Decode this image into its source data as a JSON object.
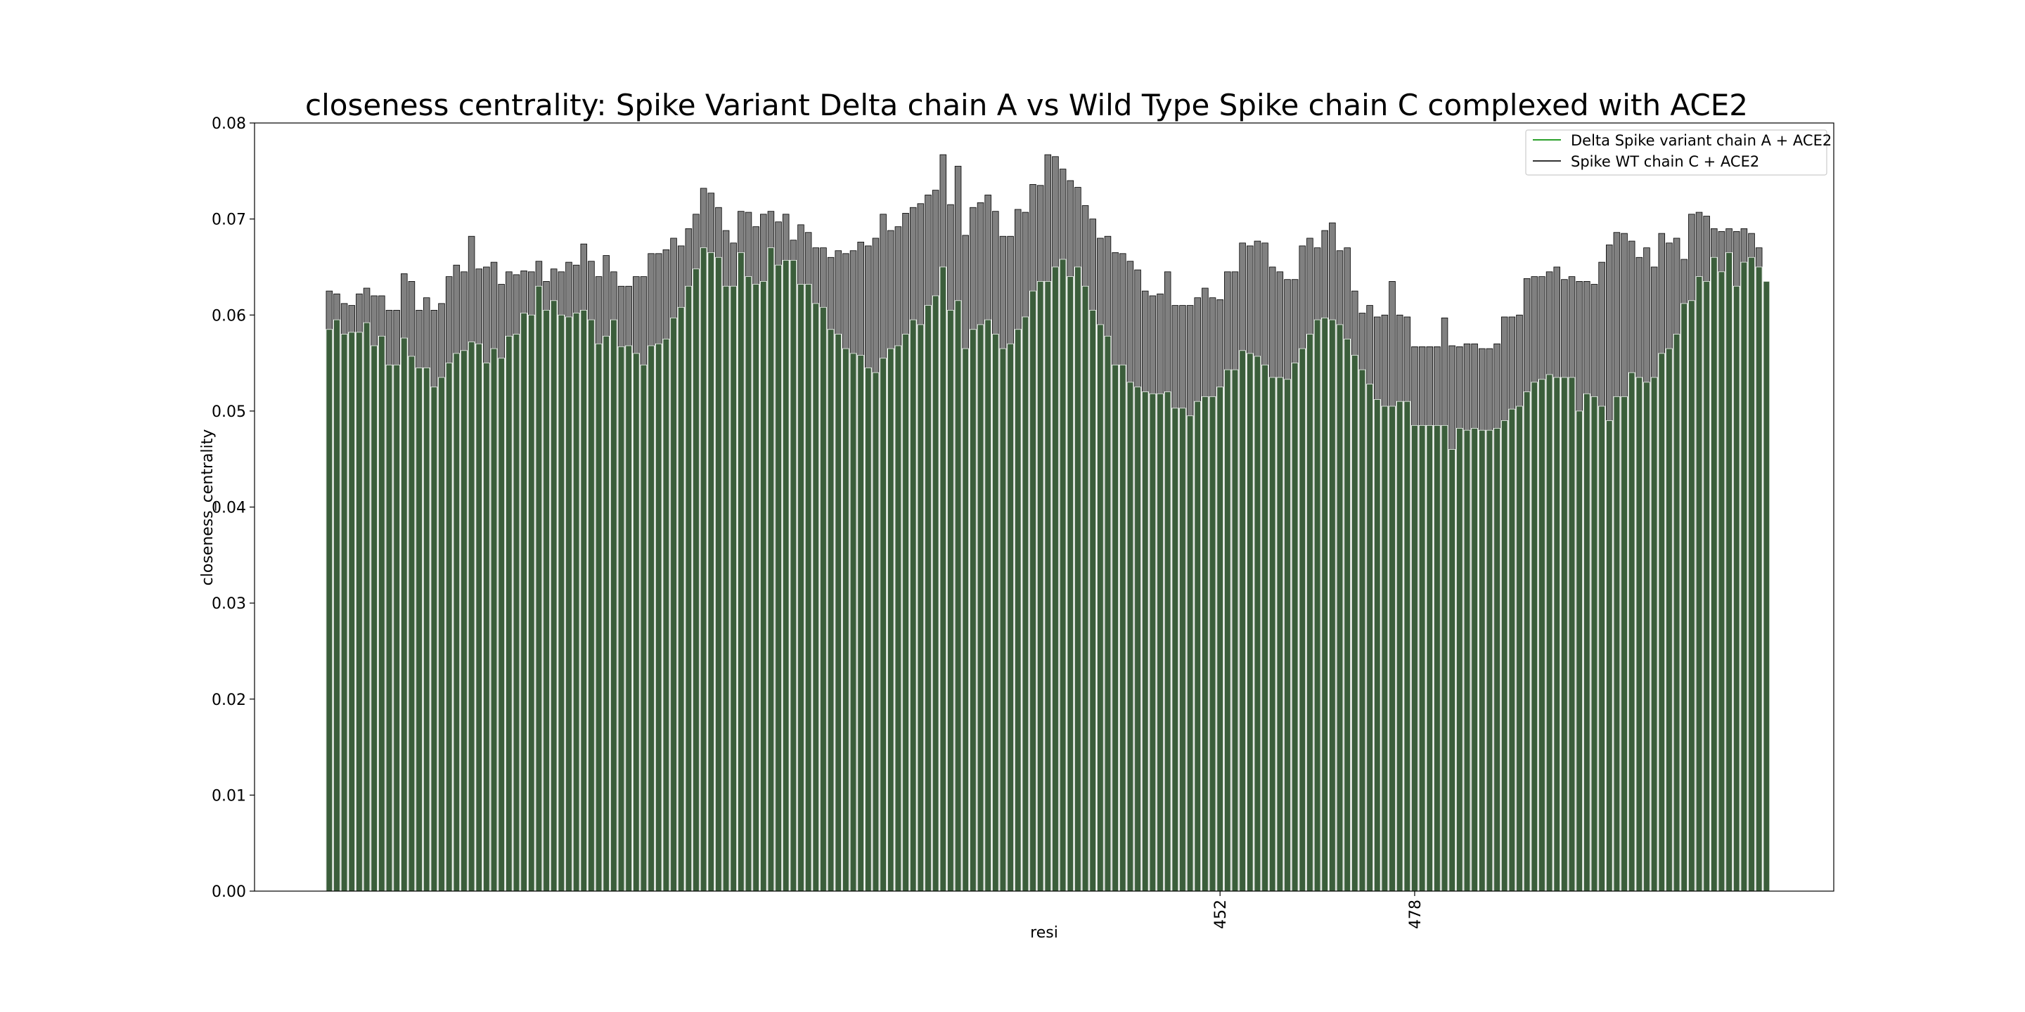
{
  "chart_data": {
    "type": "bar",
    "title": "closeness centrality: Spike Variant Delta chain A vs Wild Type Spike chain C complexed with ACE2",
    "xlabel": "resi",
    "ylabel": "closeness_centrality",
    "ylim": [
      0,
      0.08
    ],
    "yticks": [
      "0.00",
      "0.01",
      "0.02",
      "0.03",
      "0.04",
      "0.05",
      "0.06",
      "0.07",
      "0.08"
    ],
    "x_tick_labels": [
      {
        "index": 119,
        "label": "452"
      },
      {
        "index": 145,
        "label": "478"
      }
    ],
    "grid": false,
    "legend_position": "top-right",
    "series": [
      {
        "name": "Spike WT chain C + ACE2",
        "color": "#808080",
        "values": [
          0.0625,
          0.0622,
          0.0612,
          0.061,
          0.0622,
          0.0628,
          0.062,
          0.062,
          0.0605,
          0.0605,
          0.0643,
          0.0635,
          0.0605,
          0.0618,
          0.0605,
          0.0612,
          0.064,
          0.0652,
          0.0645,
          0.0682,
          0.0648,
          0.065,
          0.0655,
          0.0632,
          0.0645,
          0.0642,
          0.0646,
          0.0645,
          0.0656,
          0.0635,
          0.0648,
          0.0645,
          0.0655,
          0.0652,
          0.0674,
          0.0656,
          0.064,
          0.0662,
          0.0645,
          0.063,
          0.063,
          0.064,
          0.064,
          0.0664,
          0.0664,
          0.0668,
          0.068,
          0.0672,
          0.069,
          0.0705,
          0.0732,
          0.0727,
          0.0712,
          0.0688,
          0.0675,
          0.0708,
          0.0707,
          0.0692,
          0.0705,
          0.0708,
          0.0697,
          0.0705,
          0.0678,
          0.0694,
          0.0686,
          0.067,
          0.067,
          0.066,
          0.0667,
          0.0664,
          0.0667,
          0.0676,
          0.0672,
          0.068,
          0.0705,
          0.0688,
          0.0692,
          0.0706,
          0.0712,
          0.0716,
          0.0725,
          0.073,
          0.0767,
          0.0715,
          0.0755,
          0.0683,
          0.0712,
          0.0717,
          0.0725,
          0.0708,
          0.0682,
          0.0682,
          0.071,
          0.0707,
          0.0736,
          0.0735,
          0.0767,
          0.0765,
          0.0752,
          0.074,
          0.0733,
          0.0714,
          0.07,
          0.068,
          0.0682,
          0.0665,
          0.0664,
          0.0656,
          0.0647,
          0.0625,
          0.062,
          0.0622,
          0.0645,
          0.061,
          0.061,
          0.061,
          0.0618,
          0.0628,
          0.0618,
          0.0616,
          0.0645,
          0.0645,
          0.0675,
          0.0672,
          0.0677,
          0.0675,
          0.065,
          0.0645,
          0.0637,
          0.0637,
          0.0672,
          0.068,
          0.067,
          0.0688,
          0.0696,
          0.0667,
          0.067,
          0.0625,
          0.0602,
          0.061,
          0.0598,
          0.06,
          0.0635,
          0.06,
          0.0598,
          0.0567,
          0.0567,
          0.0567,
          0.0567,
          0.0597,
          0.0568,
          0.0567,
          0.057,
          0.057,
          0.0565,
          0.0565,
          0.057,
          0.0598,
          0.0598,
          0.06,
          0.0638,
          0.064,
          0.064,
          0.0645,
          0.065,
          0.0637,
          0.064,
          0.0635,
          0.0635,
          0.0632,
          0.0655,
          0.0673,
          0.0686,
          0.0685,
          0.0677,
          0.066,
          0.067,
          0.065,
          0.0685,
          0.0675,
          0.068,
          0.0658,
          0.0705,
          0.0707,
          0.0703,
          0.069,
          0.0687,
          0.069,
          0.0687,
          0.069,
          0.0685,
          0.067
        ]
      },
      {
        "name": "Delta Spike variant chain A + ACE2",
        "color": "#3b5e3b",
        "values": [
          0.0585,
          0.0595,
          0.058,
          0.0582,
          0.0582,
          0.0592,
          0.0568,
          0.0578,
          0.0548,
          0.0548,
          0.0576,
          0.0557,
          0.0545,
          0.0545,
          0.0525,
          0.0535,
          0.055,
          0.056,
          0.0563,
          0.0572,
          0.057,
          0.055,
          0.0565,
          0.0555,
          0.0578,
          0.058,
          0.0602,
          0.06,
          0.063,
          0.0605,
          0.0615,
          0.06,
          0.0598,
          0.0602,
          0.0605,
          0.0595,
          0.057,
          0.0578,
          0.0595,
          0.0567,
          0.0568,
          0.056,
          0.0548,
          0.0568,
          0.057,
          0.0575,
          0.0597,
          0.0608,
          0.063,
          0.0648,
          0.067,
          0.0665,
          0.066,
          0.063,
          0.063,
          0.0665,
          0.064,
          0.0632,
          0.0635,
          0.067,
          0.0652,
          0.0657,
          0.0657,
          0.0632,
          0.0632,
          0.0612,
          0.0608,
          0.0585,
          0.058,
          0.0565,
          0.056,
          0.0558,
          0.0545,
          0.054,
          0.0555,
          0.0565,
          0.0568,
          0.058,
          0.0595,
          0.059,
          0.061,
          0.062,
          0.065,
          0.0605,
          0.0615,
          0.0565,
          0.0585,
          0.059,
          0.0595,
          0.058,
          0.0565,
          0.057,
          0.0585,
          0.0598,
          0.0625,
          0.0635,
          0.0635,
          0.065,
          0.0658,
          0.064,
          0.065,
          0.063,
          0.0605,
          0.059,
          0.0578,
          0.0548,
          0.0548,
          0.053,
          0.0525,
          0.052,
          0.0518,
          0.0518,
          0.052,
          0.0503,
          0.0503,
          0.0495,
          0.051,
          0.0515,
          0.0515,
          0.0525,
          0.0543,
          0.0543,
          0.0563,
          0.056,
          0.0557,
          0.0548,
          0.0535,
          0.0535,
          0.0533,
          0.055,
          0.0565,
          0.058,
          0.0595,
          0.0597,
          0.0595,
          0.059,
          0.0575,
          0.0558,
          0.0543,
          0.0528,
          0.0512,
          0.0505,
          0.0505,
          0.051,
          0.051,
          0.0485,
          0.0485,
          0.0485,
          0.0485,
          0.0485,
          0.046,
          0.0482,
          0.048,
          0.0482,
          0.048,
          0.048,
          0.0482,
          0.049,
          0.0502,
          0.0505,
          0.052,
          0.053,
          0.0533,
          0.0538,
          0.0535,
          0.0535,
          0.0535,
          0.05,
          0.0518,
          0.0515,
          0.0505,
          0.049,
          0.0515,
          0.0515,
          0.054,
          0.0535,
          0.053,
          0.0535,
          0.056,
          0.0565,
          0.058,
          0.0612,
          0.0615,
          0.064,
          0.0635,
          0.066,
          0.0645,
          0.0665,
          0.063,
          0.0655,
          0.066,
          0.065,
          0.0635
        ]
      }
    ]
  }
}
